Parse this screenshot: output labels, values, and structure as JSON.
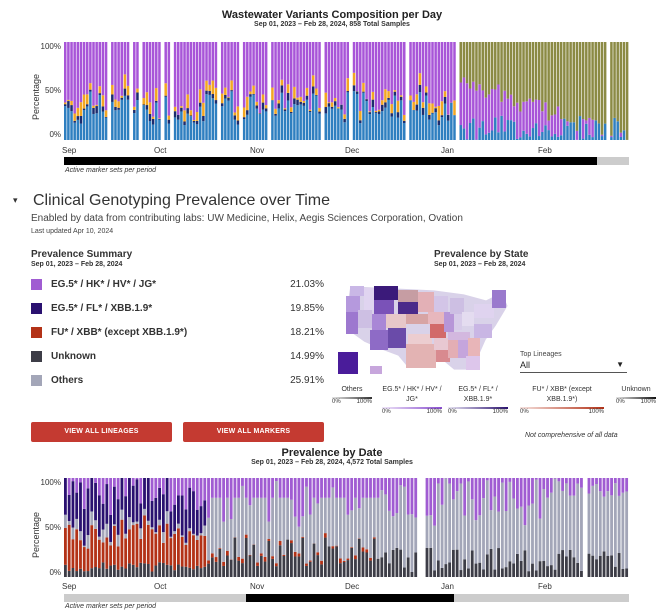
{
  "wastewater": {
    "title": "Wastewater Variants Composition per Day",
    "subtitle": "Sep 01, 2023 – Feb 28, 2024, 858 Total Samples",
    "ylabel": "Percentage",
    "yticks": [
      "100%",
      "50%",
      "0%"
    ],
    "months": [
      "Sep",
      "Oct",
      "Nov",
      "Dec",
      "Jan",
      "Feb"
    ],
    "note": "Active marker sets per period"
  },
  "clinical": {
    "title": "Clinical Genotyping Prevalence over Time",
    "enabled_by": "Enabled by data from contributing labs: UW Medicine, Helix, Aegis Sciences Corporation, Ovation",
    "last_updated": "Last updated Apr 10, 2024"
  },
  "summary": {
    "title": "Prevalence Summary",
    "subtitle": "Sep 01, 2023 – Feb 28, 2024",
    "rows": [
      {
        "label": "EG.5* / HK* / HV* / JG*",
        "pct": "21.03%",
        "color": "#a05cd2"
      },
      {
        "label": "EG.5* / FL* / XBB.1.9*",
        "pct": "19.85%",
        "color": "#2a1170"
      },
      {
        "label": "FU* / XBB* (except XBB.1.9*)",
        "pct": "18.21%",
        "color": "#b33217"
      },
      {
        "label": "Unknown",
        "pct": "14.99%",
        "color": "#3d3d47"
      },
      {
        "label": "Others",
        "pct": "25.91%",
        "color": "#a3a6b8"
      }
    ],
    "btn_lineages": "VIEW ALL LINEAGES",
    "btn_markers": "VIEW ALL MARKERS"
  },
  "state": {
    "title": "Prevalence by State",
    "subtitle": "Sep 01, 2023 – Feb 28, 2024",
    "dropdown_label": "Top Lineages",
    "dropdown_value": "All",
    "legends": [
      {
        "label": "Others",
        "lo": "0%",
        "hi": "100%"
      },
      {
        "label": "EG.5* / HK* / HV* / JG*",
        "lo": "0%",
        "hi": "100%"
      },
      {
        "label": "EG.5* / FL* / XBB.1.9*",
        "lo": "0%",
        "hi": "100%"
      },
      {
        "label": "FU* / XBB* (except XBB.1.9*)",
        "lo": "0%",
        "hi": "100%"
      },
      {
        "label": "Unknown",
        "lo": "0%",
        "hi": "100%"
      }
    ],
    "note": "Not comprehensive of all data"
  },
  "bydate": {
    "title": "Prevalence by Date",
    "subtitle": "Sep 01, 2023 – Feb 28, 2024, 4,572 Total Samples",
    "ylabel": "Percentage",
    "yticks": [
      "100%",
      "50%",
      "0%"
    ],
    "months": [
      "Sep",
      "Oct",
      "Nov",
      "Dec",
      "Jan",
      "Feb"
    ],
    "note": "Active marker sets per period"
  },
  "colors": {
    "ww_purple": "#a855d8",
    "ww_blue": "#2f7fc0",
    "ww_orange": "#f2a623",
    "ww_olive": "#8b8a44",
    "ww_navy": "#1c2c6e",
    "ww_gray": "#9aa0a6"
  }
}
